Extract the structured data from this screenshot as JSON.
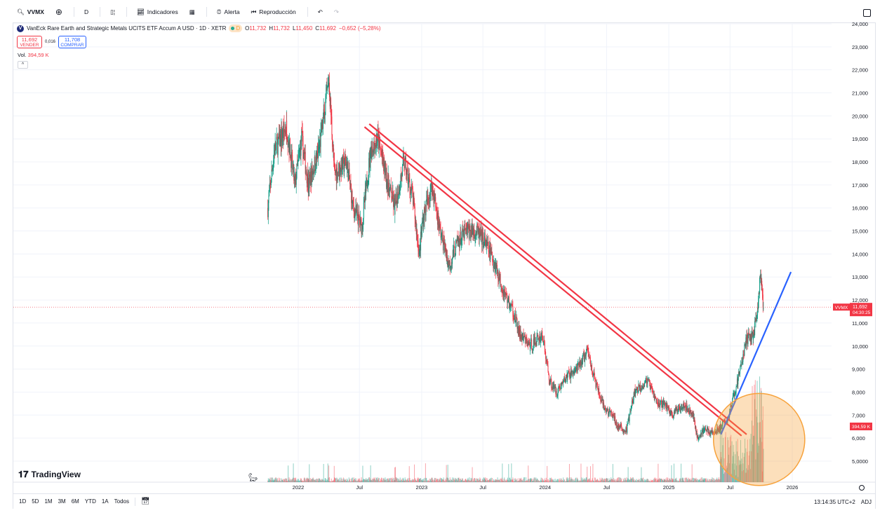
{
  "toolbar": {
    "symbol": "VVMX",
    "interval": "D",
    "indicators": "Indicadores",
    "alert": "Alerta",
    "replay": "Reproducción"
  },
  "legend": {
    "title": "VanEck Rare Earth and Strategic Metals UCITS ETF Accum A USD · 1D · XETR",
    "logo_letter": "V",
    "badge": "D",
    "o_label": "O",
    "o": "11,732",
    "h_label": "H",
    "h": "11,732",
    "l_label": "L",
    "l": "11,450",
    "c_label": "C",
    "c": "11,692",
    "change": "−0,652 (−5,28%)"
  },
  "trade": {
    "sell_price": "11,692",
    "sell_label": "VENDER",
    "spread": "0,016",
    "buy_price": "11,708",
    "buy_label": "COMPRAR"
  },
  "volume": {
    "label": "Vol.",
    "value": "394,59 K"
  },
  "price_tag": {
    "symbol": "VVMX",
    "price": "11,692",
    "countdown": "04:30:25"
  },
  "volume_tag": "394,59 K",
  "bottom": {
    "ranges": [
      "1D",
      "5D",
      "1M",
      "3M",
      "6M",
      "YTD",
      "1A",
      "Todos"
    ],
    "time": "13:14:35 UTC+2",
    "adj": "ADJ"
  },
  "brand": "TradingView",
  "colors": {
    "up": "#089981",
    "down": "#f23645",
    "trend_down": "#f23645",
    "trend_up": "#2962ff",
    "highlight": "#f7a23b"
  },
  "chart_data": {
    "type": "candlestick",
    "yticks": [
      "24,000",
      "23,000",
      "22,000",
      "21,000",
      "20,000",
      "19,000",
      "18,000",
      "17,000",
      "16,000",
      "15,000",
      "14,000",
      "13,000",
      "12,000",
      "11,000",
      "10,000",
      "9,000",
      "8,000",
      "7,000",
      "6,000",
      "5,0000"
    ],
    "ylim": [
      4.3,
      24
    ],
    "xticks": [
      {
        "date": "2022-01-01",
        "label": "2022"
      },
      {
        "date": "2022-07-01",
        "label": "Jul"
      },
      {
        "date": "2023-01-01",
        "label": "2023"
      },
      {
        "date": "2023-07-01",
        "label": "Jul"
      },
      {
        "date": "2024-01-01",
        "label": "2024"
      },
      {
        "date": "2024-07-01",
        "label": "Jul"
      },
      {
        "date": "2025-01-01",
        "label": "2025"
      },
      {
        "date": "2025-07-01",
        "label": "Jul"
      },
      {
        "date": "2026-01-01",
        "label": "2026"
      }
    ],
    "close_approx": [
      [
        "2021-10-03",
        16.0
      ],
      [
        "2021-10-22",
        18.5
      ],
      [
        "2021-11-28",
        19.5
      ],
      [
        "2021-12-22",
        17.0
      ],
      [
        "2022-01-11",
        19.0
      ],
      [
        "2022-01-31",
        17.0
      ],
      [
        "2022-03-03",
        18.5
      ],
      [
        "2022-04-02",
        21.5
      ],
      [
        "2022-04-18",
        17.5
      ],
      [
        "2022-05-24",
        18.0
      ],
      [
        "2022-06-13",
        16.0
      ],
      [
        "2022-07-08",
        15.2
      ],
      [
        "2022-08-03",
        18.5
      ],
      [
        "2022-08-24",
        19.0
      ],
      [
        "2022-09-24",
        17.0
      ],
      [
        "2022-10-14",
        16.0
      ],
      [
        "2022-11-10",
        18.0
      ],
      [
        "2022-12-05",
        16.5
      ],
      [
        "2022-12-25",
        14.0
      ],
      [
        "2023-01-04",
        15.5
      ],
      [
        "2023-01-31",
        17.0
      ],
      [
        "2023-02-25",
        15.0
      ],
      [
        "2023-03-23",
        13.5
      ],
      [
        "2023-04-17",
        14.5
      ],
      [
        "2023-05-14",
        15.0
      ],
      [
        "2023-06-11",
        15.0
      ],
      [
        "2023-07-08",
        14.5
      ],
      [
        "2023-08-08",
        13.5
      ],
      [
        "2023-08-28",
        12.5
      ],
      [
        "2023-09-28",
        11.5
      ],
      [
        "2023-10-18",
        10.5
      ],
      [
        "2023-11-18",
        10.0
      ],
      [
        "2023-12-24",
        10.5
      ],
      [
        "2024-01-14",
        8.5
      ],
      [
        "2024-02-04",
        8.0
      ],
      [
        "2024-03-06",
        8.7
      ],
      [
        "2024-04-05",
        9.0
      ],
      [
        "2024-05-06",
        9.8
      ],
      [
        "2024-05-27",
        8.5
      ],
      [
        "2024-06-23",
        7.3
      ],
      [
        "2024-07-18",
        7.0
      ],
      [
        "2024-08-03",
        6.5
      ],
      [
        "2024-08-28",
        6.3
      ],
      [
        "2024-09-22",
        8.0
      ],
      [
        "2024-10-29",
        8.5
      ],
      [
        "2024-11-29",
        7.5
      ],
      [
        "2024-12-19",
        7.5
      ],
      [
        "2025-01-12",
        7.0
      ],
      [
        "2025-02-12",
        7.5
      ],
      [
        "2025-03-14",
        7.0
      ],
      [
        "2025-03-28",
        5.9
      ],
      [
        "2025-04-14",
        6.4
      ],
      [
        "2025-05-15",
        6.2
      ],
      [
        "2025-06-04",
        6.5
      ],
      [
        "2025-06-24",
        6.8
      ],
      [
        "2025-07-15",
        8.0
      ],
      [
        "2025-07-31",
        9.0
      ],
      [
        "2025-08-19",
        10.3
      ],
      [
        "2025-09-08",
        10.5
      ],
      [
        "2025-09-21",
        11.5
      ],
      [
        "2025-09-29",
        13.2
      ],
      [
        "2025-10-05",
        12.0
      ],
      [
        "2025-10-09",
        11.692
      ]
    ],
    "last_price": 11.692,
    "drawings": [
      {
        "type": "trendline",
        "color": "#f23645",
        "from": [
          "2022-07-16",
          19.52
        ],
        "to": [
          "2025-08-04",
          6.1
        ]
      },
      {
        "type": "trendline",
        "color": "#f23645",
        "from": [
          "2022-07-30",
          19.65
        ],
        "to": [
          "2025-08-19",
          6.16
        ]
      },
      {
        "type": "trendline",
        "color": "#2962ff",
        "from": [
          "2025-06-04",
          6.16
        ],
        "to": [
          "2025-12-28",
          13.22
        ]
      },
      {
        "type": "ellipse",
        "color": "#f7a23b",
        "center": [
          "2025-09-25",
          5.94
        ],
        "radius_days": 135,
        "radius_price": 2.0
      }
    ]
  }
}
